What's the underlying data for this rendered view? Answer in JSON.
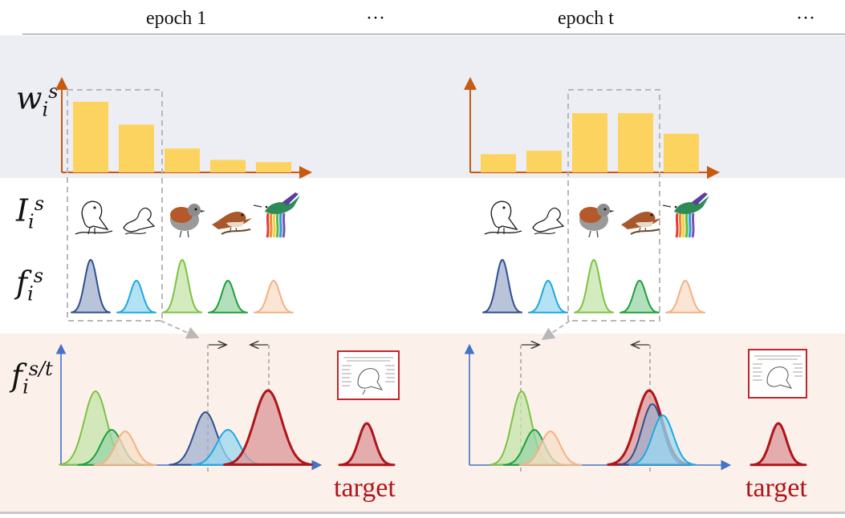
{
  "header": {
    "epoch1_label": "epoch 1",
    "ellipsis1": "···",
    "epocht_label": "epoch t",
    "ellipsis2": "···"
  },
  "row_labels": {
    "weight": {
      "base": "w",
      "sub": "i",
      "sup": "s"
    },
    "image": {
      "base": "I",
      "sub": "i",
      "sup": "s"
    },
    "feature": {
      "base": "f",
      "sub": "i",
      "sup": "s"
    },
    "feature_st": {
      "base": "f",
      "sub": "i",
      "sup": "s/t"
    }
  },
  "target_labels": {
    "left": "target",
    "right": "target"
  },
  "epoch1": {
    "weights": [
      0.62,
      0.42,
      0.21,
      0.11,
      0.09
    ]
  },
  "epocht": {
    "weights": [
      0.16,
      0.19,
      0.52,
      0.52,
      0.34
    ]
  },
  "source_images": [
    "bird-sketch-perched",
    "bird-outline",
    "bird-brown-gray",
    "bird-brown-branch",
    "hummingbird-watercolor"
  ],
  "colors": {
    "bar": "#fdd35f",
    "weight_axis": "#c55a11",
    "dist_axis": "#4472c4",
    "target": "#b0141b",
    "source": [
      "#2f4f8f",
      "#1fa8e0",
      "#7dc242",
      "#1ea03c",
      "#f4b183"
    ]
  }
}
